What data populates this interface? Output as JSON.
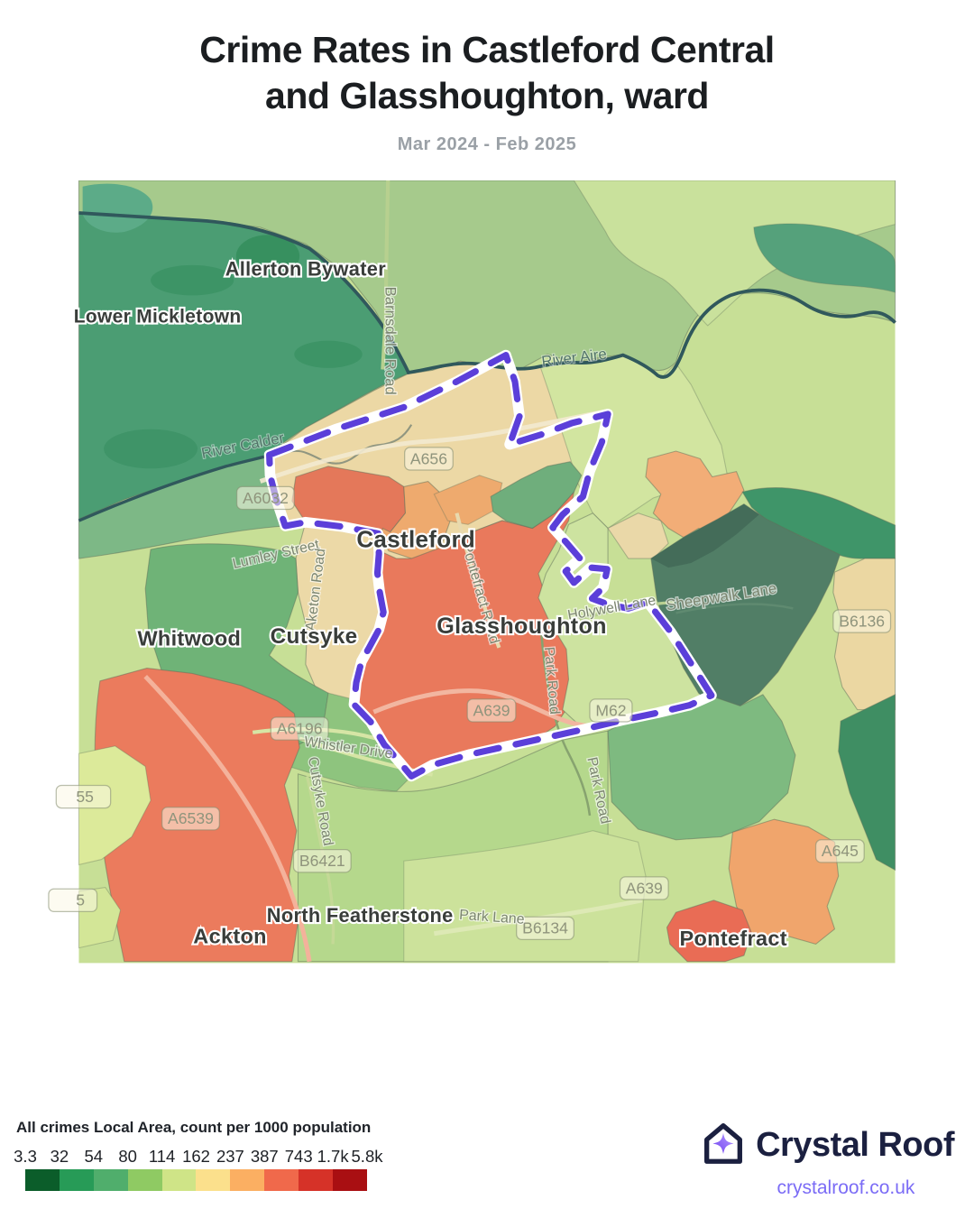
{
  "header": {
    "title_line1": "Crime Rates in Castleford Central",
    "title_line2": "and Glasshoughton, ward",
    "subtitle": "Mar 2024 - Feb 2025"
  },
  "map": {
    "boundary_color": "#5b3fd9",
    "water_color": "#30585c",
    "place_labels": [
      {
        "text": "Allerton Bywater"
      },
      {
        "text": "Lower Mickletown"
      },
      {
        "text": "Castleford"
      },
      {
        "text": "Cutsyke"
      },
      {
        "text": "Whitwood"
      },
      {
        "text": "Glasshoughton"
      },
      {
        "text": "North Featherstone"
      },
      {
        "text": "Ackton"
      },
      {
        "text": "Pontefract"
      }
    ],
    "road_labels": [
      {
        "text": "Barnsdale Road"
      },
      {
        "text": "River Aire"
      },
      {
        "text": "River Calder"
      },
      {
        "text": "Lumley Street"
      },
      {
        "text": "Aketon Road"
      },
      {
        "text": "Pontefract Road"
      },
      {
        "text": "Park Road"
      },
      {
        "text": "Holywell Lane"
      },
      {
        "text": "Sheepwalk Lane"
      },
      {
        "text": "Whistler Drive"
      },
      {
        "text": "Cutsyke Road"
      },
      {
        "text": "Park Road"
      },
      {
        "text": "Park Lane"
      }
    ],
    "shields": [
      {
        "text": "A656"
      },
      {
        "text": "A6032"
      },
      {
        "text": "A6196"
      },
      {
        "text": "A6539"
      },
      {
        "text": "B6421"
      },
      {
        "text": "B6134"
      },
      {
        "text": "A639"
      },
      {
        "text": "M62"
      },
      {
        "text": "A639"
      },
      {
        "text": "A645"
      },
      {
        "text": "B6136"
      },
      {
        "text": "55"
      },
      {
        "text": "5"
      }
    ]
  },
  "legend": {
    "title": "All crimes Local Area, count per 1000 population",
    "tick_labels": [
      "3.3",
      "32",
      "54",
      "80",
      "114",
      "162",
      "237",
      "387",
      "743",
      "1.7k",
      "5.8k"
    ],
    "colors": [
      "#0b5d2a",
      "#279b57",
      "#50ae6c",
      "#8fca63",
      "#cfe487",
      "#fbe08c",
      "#fbaf62",
      "#f0694b",
      "#d63228",
      "#a90f12"
    ]
  },
  "footer": {
    "brand": "Crystal Roof",
    "url": "crystalroof.co.uk",
    "brand_color": "#1b2040",
    "accent_purple": "#8a63f6"
  }
}
